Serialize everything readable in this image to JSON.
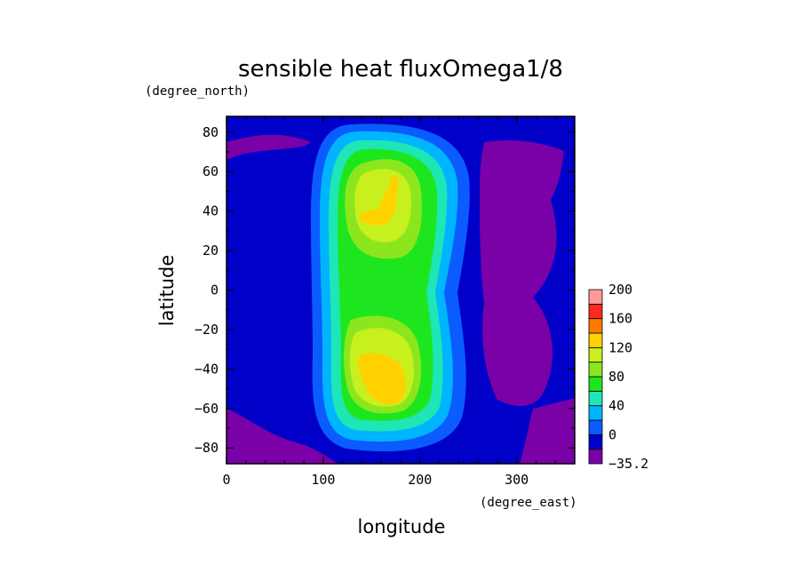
{
  "chart_data": {
    "type": "heatmap",
    "title": "sensible heat fluxOmega1/8",
    "xlabel": "longitude",
    "ylabel": "latitude",
    "x_unit": "(degree_east)",
    "y_unit": "(degree_north)",
    "xlim": [
      0,
      360
    ],
    "ylim": [
      -88,
      88
    ],
    "x_ticks": [
      "0",
      "100",
      "200",
      "300"
    ],
    "y_ticks": [
      "80",
      "60",
      "40",
      "20",
      "0",
      "-20",
      "-40",
      "-60",
      "-80"
    ],
    "colorbar": {
      "levels": [
        -35.2,
        0,
        20,
        40,
        60,
        80,
        100,
        120,
        140,
        160,
        180,
        200
      ],
      "labels": [
        "200",
        "160",
        "120",
        "80",
        "40",
        "0",
        "-35.2"
      ],
      "colors": [
        "#7a00a8",
        "#0000c8",
        "#0a5cff",
        "#00b4ff",
        "#1ee6b4",
        "#1ee61e",
        "#8ce61e",
        "#c8f01e",
        "#ffd200",
        "#ff7800",
        "#ff2a1e",
        "#ff9a9a"
      ]
    },
    "field_description_levels": {
      "background": 0,
      "warm_band_center_lon": 165,
      "warm_band_west_edge_lon": 95,
      "warm_band_east_edge_lon": 245,
      "maxima": [
        {
          "lat": 45,
          "lon": 150,
          "value": 125
        },
        {
          "lat": -45,
          "lon": 160,
          "value": 130
        }
      ],
      "minima_region": "east of 260 deg and polar bands below -35.2 to 0"
    }
  }
}
